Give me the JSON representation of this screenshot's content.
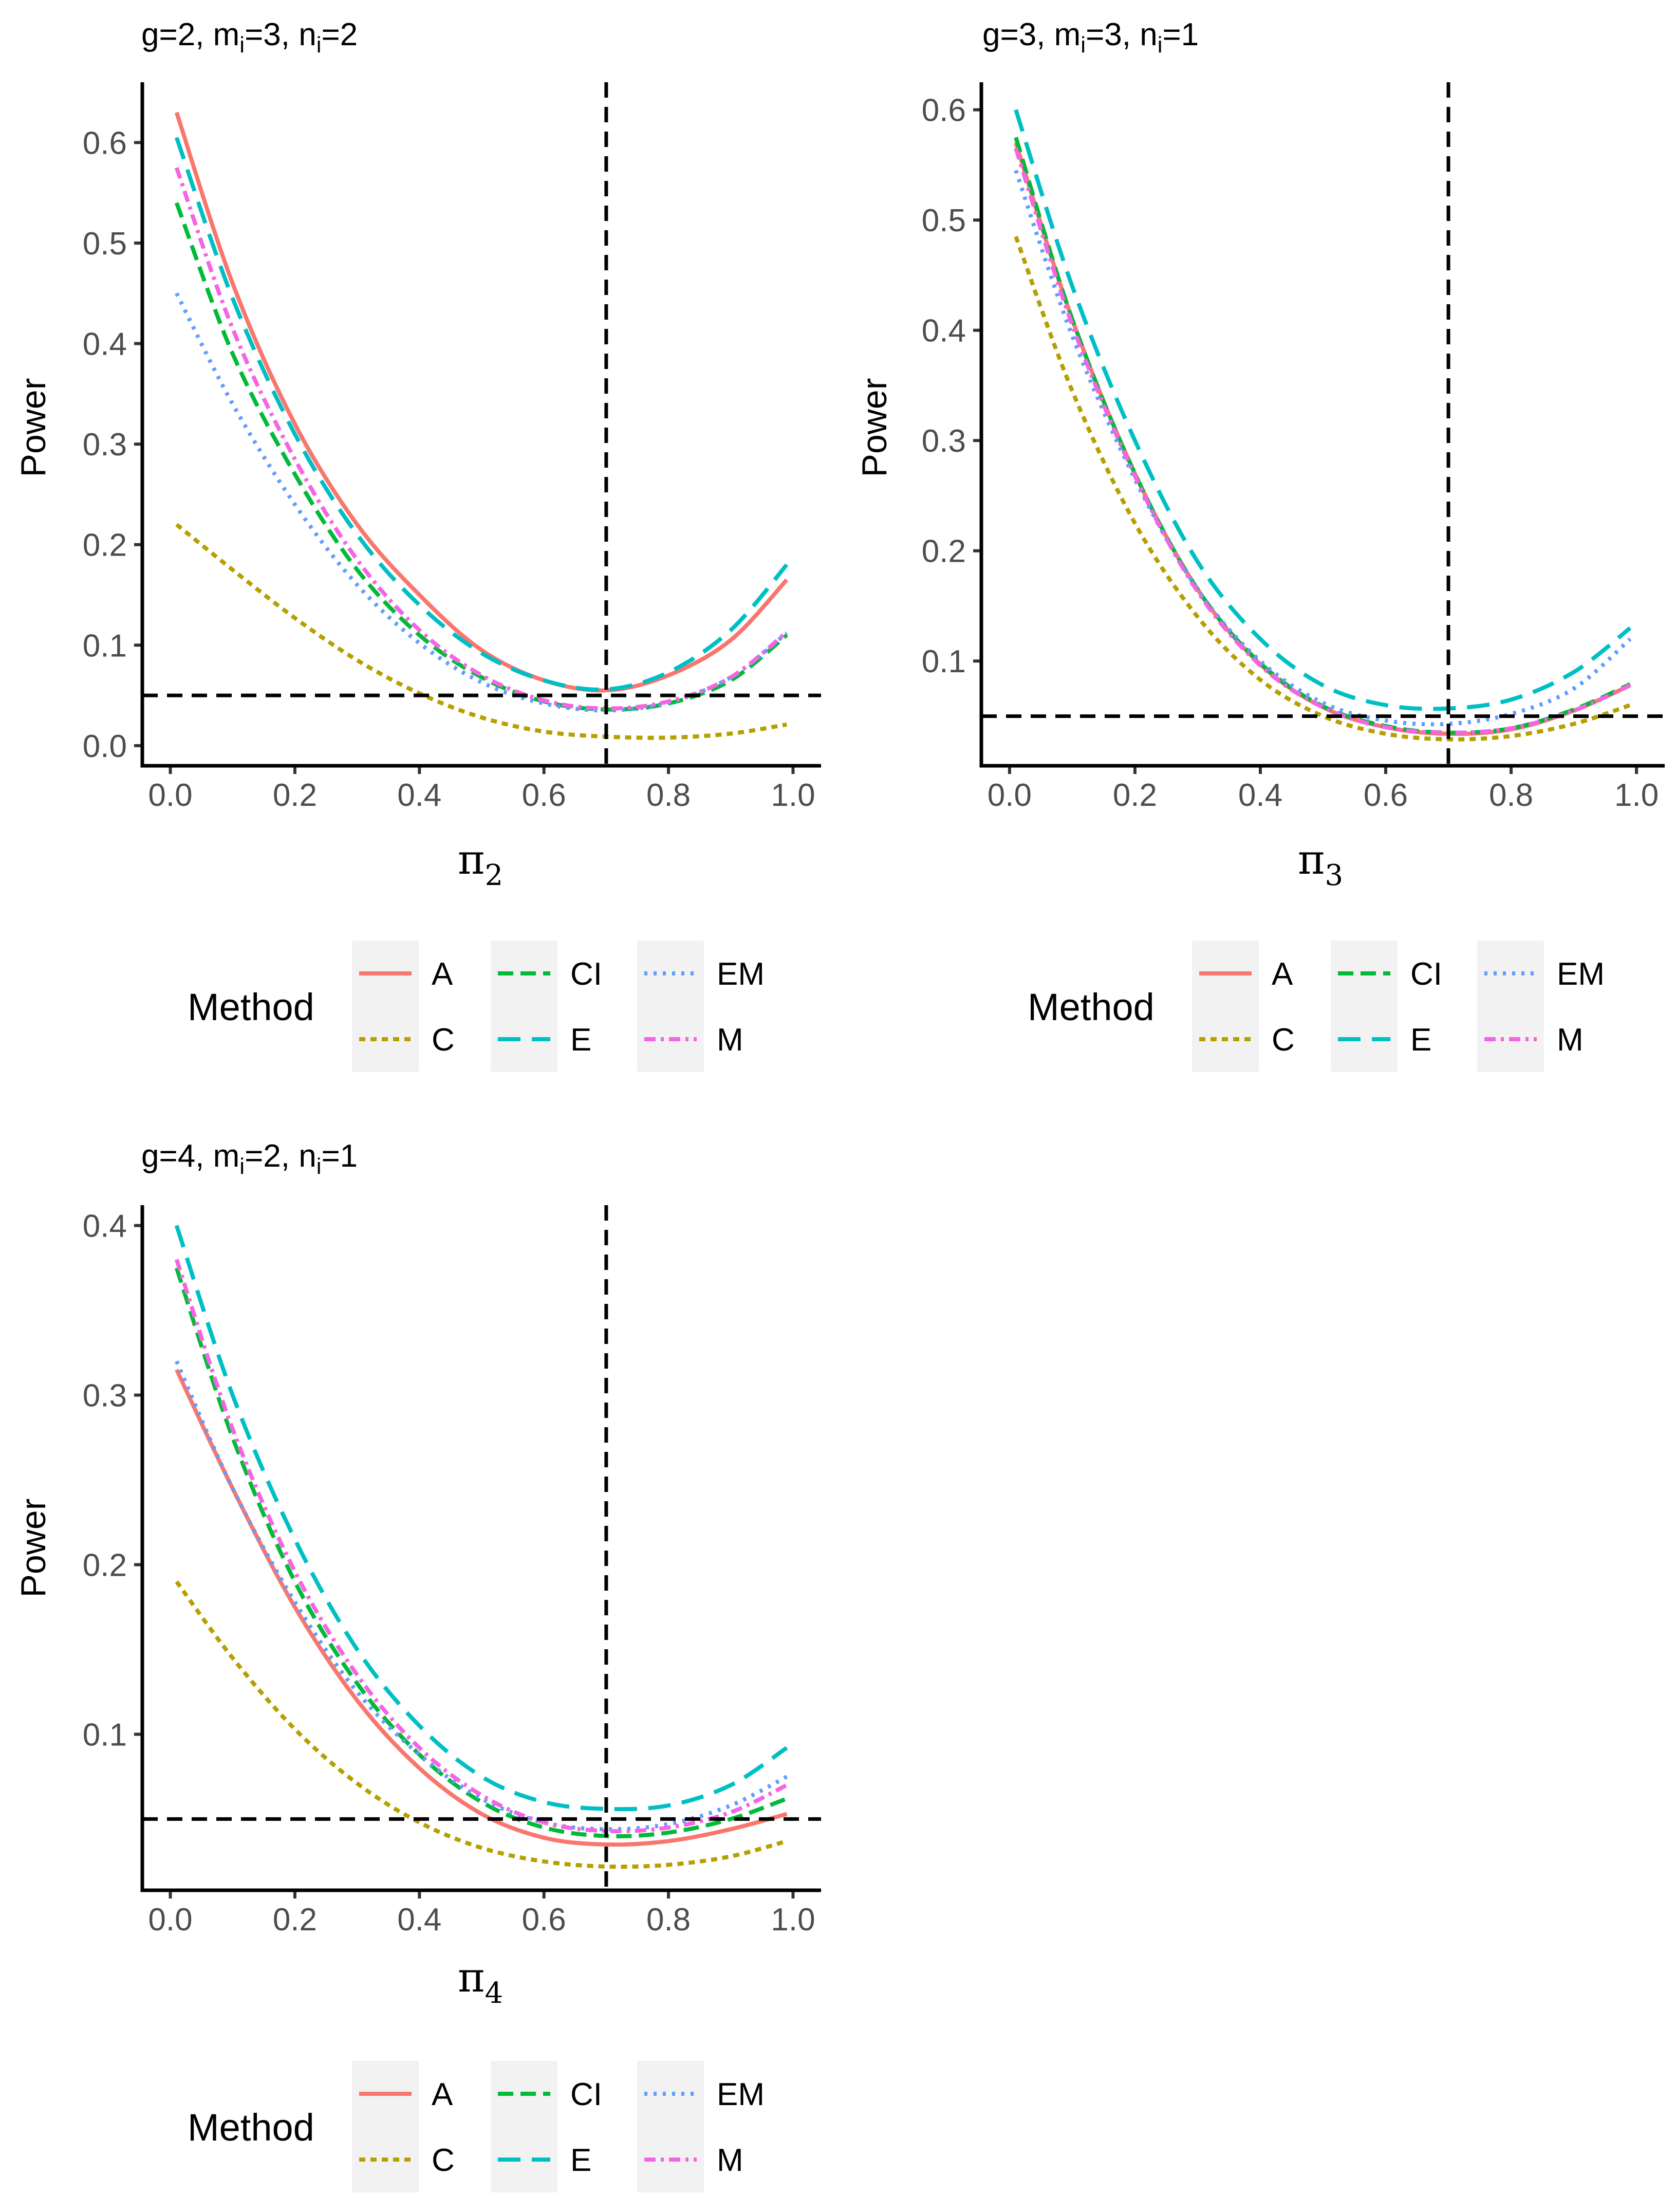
{
  "chart_data": [
    {
      "type": "line",
      "title": {
        "pre": "g=2, m",
        "s1": "i",
        "mid": "=3, n",
        "s2": "i",
        "post": "=2"
      },
      "ylabel": "Power",
      "xlabel": {
        "main": "π",
        "sub": "2"
      },
      "xlim": [
        0,
        1
      ],
      "ylim": [
        -0.02,
        0.66
      ],
      "xticks": [
        0.0,
        0.2,
        0.4,
        0.6,
        0.8,
        1.0
      ],
      "xtick_labels": [
        "0.0",
        "0.2",
        "0.4",
        "0.6",
        "0.8",
        "1.0"
      ],
      "yticks": [
        0.0,
        0.1,
        0.2,
        0.3,
        0.4,
        0.5,
        0.6
      ],
      "ytick_labels": [
        "0.0",
        "0.1",
        "0.2",
        "0.3",
        "0.4",
        "0.5",
        "0.6"
      ],
      "hline": 0.05,
      "vline": 0.7,
      "series": [
        {
          "name": "A",
          "x": [
            0.01,
            0.1,
            0.2,
            0.3,
            0.4,
            0.5,
            0.6,
            0.7,
            0.8,
            0.9,
            0.99
          ],
          "values": [
            0.63,
            0.46,
            0.32,
            0.22,
            0.15,
            0.095,
            0.065,
            0.055,
            0.07,
            0.105,
            0.165
          ]
        },
        {
          "name": "C",
          "x": [
            0.01,
            0.1,
            0.2,
            0.3,
            0.4,
            0.5,
            0.6,
            0.7,
            0.8,
            0.9,
            0.99
          ],
          "values": [
            0.22,
            0.175,
            0.127,
            0.085,
            0.052,
            0.028,
            0.014,
            0.009,
            0.008,
            0.012,
            0.021
          ]
        },
        {
          "name": "CI",
          "x": [
            0.01,
            0.1,
            0.2,
            0.3,
            0.4,
            0.5,
            0.6,
            0.7,
            0.8,
            0.9,
            0.99
          ],
          "values": [
            0.54,
            0.39,
            0.27,
            0.175,
            0.11,
            0.068,
            0.044,
            0.036,
            0.042,
            0.065,
            0.11
          ]
        },
        {
          "name": "E",
          "x": [
            0.01,
            0.1,
            0.2,
            0.3,
            0.4,
            0.5,
            0.6,
            0.7,
            0.8,
            0.9,
            0.99
          ],
          "values": [
            0.605,
            0.445,
            0.31,
            0.21,
            0.14,
            0.092,
            0.065,
            0.056,
            0.073,
            0.115,
            0.18
          ]
        },
        {
          "name": "EM",
          "x": [
            0.01,
            0.1,
            0.2,
            0.3,
            0.4,
            0.5,
            0.6,
            0.7,
            0.8,
            0.9,
            0.99
          ],
          "values": [
            0.45,
            0.34,
            0.24,
            0.16,
            0.102,
            0.063,
            0.042,
            0.035,
            0.043,
            0.068,
            0.112
          ]
        },
        {
          "name": "M",
          "x": [
            0.01,
            0.1,
            0.2,
            0.3,
            0.4,
            0.5,
            0.6,
            0.7,
            0.8,
            0.9,
            0.99
          ],
          "values": [
            0.575,
            0.415,
            0.285,
            0.185,
            0.115,
            0.07,
            0.045,
            0.037,
            0.044,
            0.068,
            0.113
          ]
        }
      ]
    },
    {
      "type": "line",
      "title": {
        "pre": "g=3, m",
        "s1": "i",
        "mid": "=3, n",
        "s2": "i",
        "post": "=1"
      },
      "ylabel": "Power",
      "xlabel": {
        "main": "π",
        "sub": "3"
      },
      "xlim": [
        0,
        1
      ],
      "ylim": [
        0.005,
        0.625
      ],
      "xticks": [
        0.0,
        0.2,
        0.4,
        0.6,
        0.8,
        1.0
      ],
      "xtick_labels": [
        "0.0",
        "0.2",
        "0.4",
        "0.6",
        "0.8",
        "1.0"
      ],
      "yticks": [
        0.1,
        0.2,
        0.3,
        0.4,
        0.5,
        0.6
      ],
      "ytick_labels": [
        "0.1",
        "0.2",
        "0.3",
        "0.4",
        "0.5",
        "0.6"
      ],
      "hline": 0.05,
      "vline": 0.7,
      "series": [
        {
          "name": "A",
          "x": [
            0.01,
            0.1,
            0.2,
            0.3,
            0.4,
            0.5,
            0.6,
            0.7,
            0.8,
            0.9,
            0.99
          ],
          "values": [
            0.57,
            0.41,
            0.27,
            0.165,
            0.097,
            0.058,
            0.04,
            0.034,
            0.038,
            0.055,
            0.078
          ]
        },
        {
          "name": "C",
          "x": [
            0.01,
            0.1,
            0.2,
            0.3,
            0.4,
            0.5,
            0.6,
            0.7,
            0.8,
            0.9,
            0.99
          ],
          "values": [
            0.485,
            0.345,
            0.225,
            0.14,
            0.083,
            0.05,
            0.034,
            0.029,
            0.032,
            0.043,
            0.06
          ]
        },
        {
          "name": "CI",
          "x": [
            0.01,
            0.1,
            0.2,
            0.3,
            0.4,
            0.5,
            0.6,
            0.7,
            0.8,
            0.9,
            0.99
          ],
          "values": [
            0.575,
            0.41,
            0.27,
            0.165,
            0.098,
            0.059,
            0.041,
            0.035,
            0.039,
            0.056,
            0.079
          ]
        },
        {
          "name": "E",
          "x": [
            0.01,
            0.1,
            0.2,
            0.3,
            0.4,
            0.5,
            0.6,
            0.7,
            0.8,
            0.9,
            0.99
          ],
          "values": [
            0.6,
            0.44,
            0.3,
            0.19,
            0.12,
            0.078,
            0.06,
            0.057,
            0.065,
            0.09,
            0.13
          ]
        },
        {
          "name": "EM",
          "x": [
            0.01,
            0.1,
            0.2,
            0.3,
            0.4,
            0.5,
            0.6,
            0.7,
            0.8,
            0.9,
            0.99
          ],
          "values": [
            0.545,
            0.395,
            0.265,
            0.165,
            0.1,
            0.062,
            0.046,
            0.043,
            0.052,
            0.075,
            0.12
          ]
        },
        {
          "name": "M",
          "x": [
            0.01,
            0.1,
            0.2,
            0.3,
            0.4,
            0.5,
            0.6,
            0.7,
            0.8,
            0.9,
            0.99
          ],
          "values": [
            0.565,
            0.405,
            0.268,
            0.163,
            0.096,
            0.058,
            0.04,
            0.035,
            0.039,
            0.055,
            0.078
          ]
        }
      ]
    },
    {
      "type": "line",
      "title": {
        "pre": "g=4, m",
        "s1": "i",
        "mid": "=2, n",
        "s2": "i",
        "post": "=1"
      },
      "ylabel": "Power",
      "xlabel": {
        "main": "π",
        "sub": "4"
      },
      "xlim": [
        0,
        1
      ],
      "ylim": [
        0.008,
        0.412
      ],
      "xticks": [
        0.0,
        0.2,
        0.4,
        0.6,
        0.8,
        1.0
      ],
      "xtick_labels": [
        "0.0",
        "0.2",
        "0.4",
        "0.6",
        "0.8",
        "1.0"
      ],
      "yticks": [
        0.1,
        0.2,
        0.3,
        0.4
      ],
      "ytick_labels": [
        "0.1",
        "0.2",
        "0.3",
        "0.4"
      ],
      "hline": 0.05,
      "vline": 0.7,
      "series": [
        {
          "name": "A",
          "x": [
            0.01,
            0.1,
            0.2,
            0.3,
            0.4,
            0.5,
            0.6,
            0.7,
            0.8,
            0.9,
            0.99
          ],
          "values": [
            0.315,
            0.245,
            0.175,
            0.12,
            0.08,
            0.053,
            0.039,
            0.035,
            0.037,
            0.044,
            0.053
          ]
        },
        {
          "name": "C",
          "x": [
            0.01,
            0.1,
            0.2,
            0.3,
            0.4,
            0.5,
            0.6,
            0.7,
            0.8,
            0.9,
            0.99
          ],
          "values": [
            0.19,
            0.145,
            0.103,
            0.071,
            0.048,
            0.033,
            0.025,
            0.022,
            0.023,
            0.028,
            0.037
          ]
        },
        {
          "name": "CI",
          "x": [
            0.01,
            0.1,
            0.2,
            0.3,
            0.4,
            0.5,
            0.6,
            0.7,
            0.8,
            0.9,
            0.99
          ],
          "values": [
            0.375,
            0.275,
            0.19,
            0.13,
            0.088,
            0.06,
            0.045,
            0.04,
            0.042,
            0.05,
            0.062
          ]
        },
        {
          "name": "E",
          "x": [
            0.01,
            0.1,
            0.2,
            0.3,
            0.4,
            0.5,
            0.6,
            0.7,
            0.8,
            0.9,
            0.99
          ],
          "values": [
            0.4,
            0.3,
            0.215,
            0.15,
            0.105,
            0.075,
            0.06,
            0.056,
            0.058,
            0.07,
            0.092
          ]
        },
        {
          "name": "EM",
          "x": [
            0.01,
            0.1,
            0.2,
            0.3,
            0.4,
            0.5,
            0.6,
            0.7,
            0.8,
            0.9,
            0.99
          ],
          "values": [
            0.32,
            0.245,
            0.178,
            0.125,
            0.088,
            0.062,
            0.048,
            0.044,
            0.047,
            0.058,
            0.075
          ]
        },
        {
          "name": "M",
          "x": [
            0.01,
            0.1,
            0.2,
            0.3,
            0.4,
            0.5,
            0.6,
            0.7,
            0.8,
            0.9,
            0.99
          ],
          "values": [
            0.38,
            0.28,
            0.196,
            0.135,
            0.092,
            0.064,
            0.048,
            0.043,
            0.045,
            0.054,
            0.07
          ]
        }
      ]
    }
  ],
  "legend": {
    "title": "Method",
    "items": [
      {
        "name": "A",
        "color": "#F8766D",
        "dash": "none"
      },
      {
        "name": "C",
        "color": "#B79F00",
        "dash": "12 10"
      },
      {
        "name": "CI",
        "color": "#00BA38",
        "dash": "30 14"
      },
      {
        "name": "E",
        "color": "#00BFC4",
        "dash": "44 22"
      },
      {
        "name": "EM",
        "color": "#619CFF",
        "dash": "6 12"
      },
      {
        "name": "M",
        "color": "#F564E3",
        "dash": "22 10 6 10"
      }
    ]
  }
}
